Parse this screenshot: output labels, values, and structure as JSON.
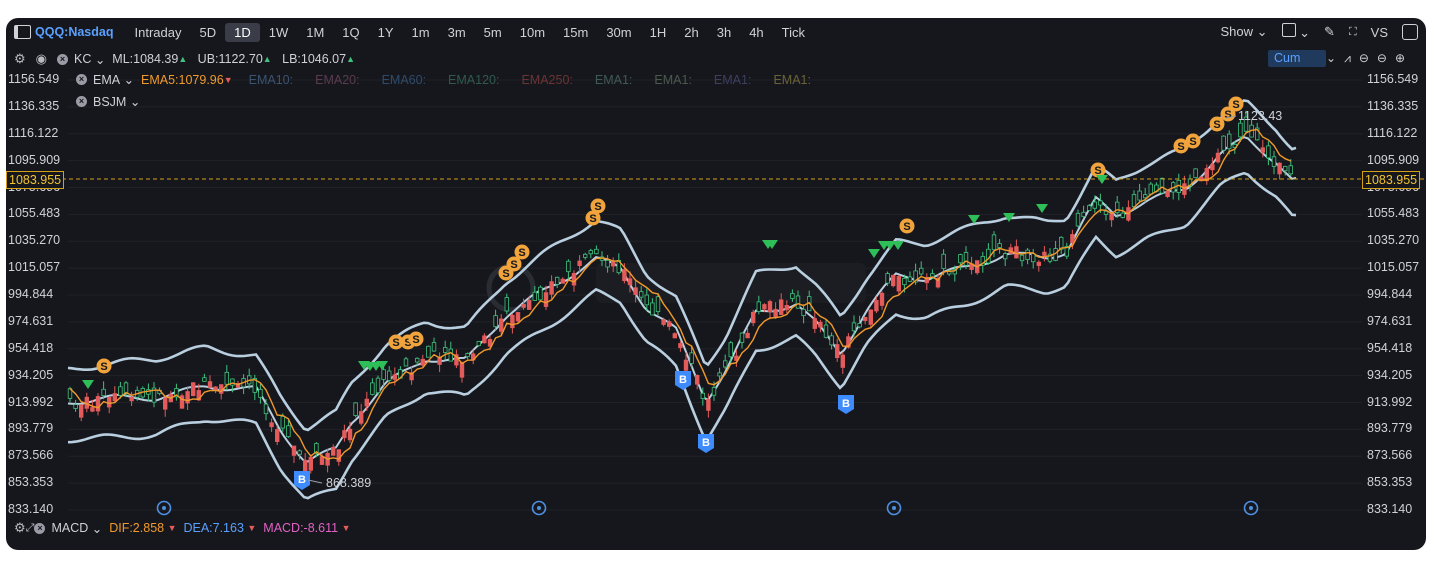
{
  "toolbar": {
    "symbol": "QQQ:Nasdaq",
    "timeframes": [
      "Intraday",
      "5D",
      "1D",
      "1W",
      "1M",
      "1Q",
      "1Y",
      "1m",
      "3m",
      "5m",
      "10m",
      "15m",
      "30m",
      "1H",
      "2h",
      "3h",
      "4h",
      "Tick"
    ],
    "active_timeframe": "1D",
    "show_label": "Show",
    "vs_label": "VS",
    "cum_label": "Cum"
  },
  "indicators": {
    "kc": {
      "name": "KC",
      "ml": "ML:1084.39",
      "ub": "UB:1122.70",
      "lb": "LB:1046.07"
    },
    "ema": {
      "name": "EMA",
      "ema5": "EMA5:1079.96",
      "others": [
        "EMA10:",
        "EMA20:",
        "EMA60:",
        "EMA120:",
        "EMA250:",
        "EMA1:",
        "EMA1:",
        "EMA1:",
        "EMA1:"
      ]
    },
    "bsjm": {
      "name": "BSJM"
    },
    "macd": {
      "name": "MACD",
      "dif": "DIF:2.858",
      "dea": "DEA:7.163",
      "macd": "MACD:-8.611"
    }
  },
  "axis": {
    "ticks": [
      "1156.549",
      "1136.335",
      "1116.122",
      "1095.909",
      "1075.696",
      "1055.483",
      "1035.270",
      "1015.057",
      "994.844",
      "974.631",
      "954.418",
      "934.205",
      "913.992",
      "893.779",
      "873.566",
      "853.353",
      "833.140"
    ],
    "current_price": "1083.955"
  },
  "annotations": {
    "low_label": "868.389",
    "high_label": "1123.43"
  },
  "colors": {
    "background": "#16171c",
    "up_candle": "#3ec27e",
    "down_candle": "#e35b5b",
    "kc_band": "#b9cfe0",
    "ema5": "#f19a2b",
    "sell_marker": "#f1a33c",
    "buy_marker": "#3d8bfd",
    "signal_triangle": "#2fbf58",
    "price_line": "#d4a017"
  },
  "chart_data": {
    "type": "line",
    "series": [
      {
        "name": "EMA5",
        "values": []
      }
    ],
    "ylim": [
      833.14,
      1156.549
    ],
    "annotations": [
      "868.389",
      "1123.43"
    ]
  }
}
